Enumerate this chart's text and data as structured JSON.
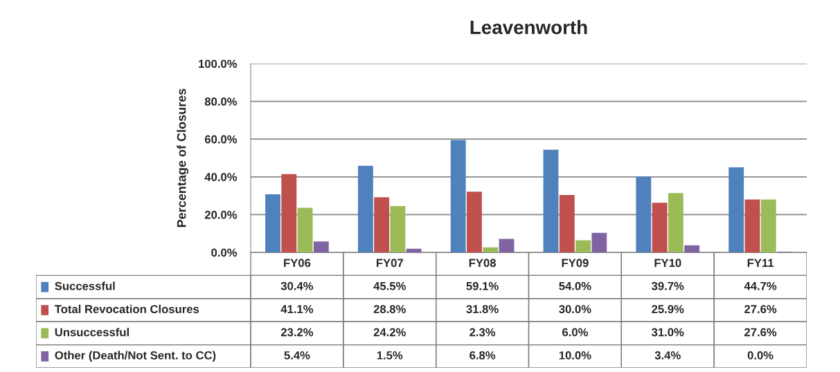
{
  "chart_data": {
    "type": "bar",
    "title": "Leavenworth",
    "ylabel": "Percentage of Closures",
    "categories": [
      "FY06",
      "FY07",
      "FY08",
      "FY09",
      "FY10",
      "FY11"
    ],
    "series": [
      {
        "name": "Successful",
        "color": "#4f81bd",
        "values": [
          30.4,
          45.5,
          59.1,
          54.0,
          39.7,
          44.7
        ],
        "value_labels": [
          "30.4%",
          "45.5%",
          "59.1%",
          "54.0%",
          "39.7%",
          "44.7%"
        ]
      },
      {
        "name": "Total Revocation Closures",
        "color": "#c0504d",
        "values": [
          41.1,
          28.8,
          31.8,
          30.0,
          25.9,
          27.6
        ],
        "value_labels": [
          "41.1%",
          "28.8%",
          "31.8%",
          "30.0%",
          "25.9%",
          "27.6%"
        ]
      },
      {
        "name": "Unsuccessful",
        "color": "#9bbb59",
        "values": [
          23.2,
          24.2,
          2.3,
          6.0,
          31.0,
          27.6
        ],
        "value_labels": [
          "23.2%",
          "24.2%",
          "2.3%",
          "6.0%",
          "31.0%",
          "27.6%"
        ]
      },
      {
        "name": "Other (Death/Not Sent. to CC)",
        "color": "#8064a2",
        "values": [
          5.4,
          1.5,
          6.8,
          10.0,
          3.4,
          0.0
        ],
        "value_labels": [
          "5.4%",
          "1.5%",
          "6.8%",
          "10.0%",
          "3.4%",
          "0.0%"
        ]
      }
    ],
    "ylim": [
      0,
      100
    ],
    "yticks": [
      {
        "value": 0,
        "label": "0.0%"
      },
      {
        "value": 20,
        "label": "20.0%"
      },
      {
        "value": 40,
        "label": "40.0%"
      },
      {
        "value": 60,
        "label": "60.0%"
      },
      {
        "value": 80,
        "label": "80.0%"
      },
      {
        "value": 100,
        "label": "100.0%"
      }
    ],
    "grid": "y",
    "legend": "bottom"
  }
}
